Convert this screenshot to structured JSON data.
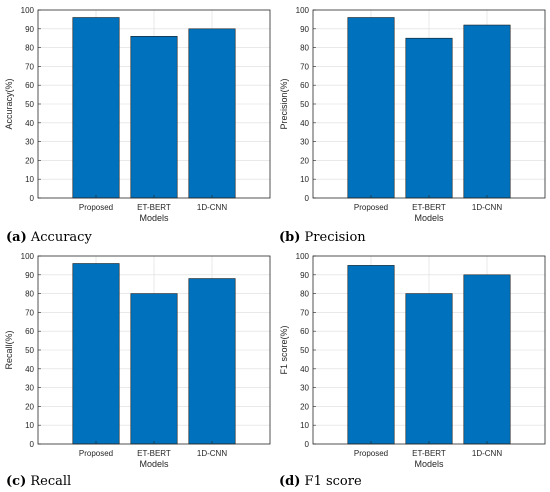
{
  "colors": {
    "bar": "#0072BD",
    "bar_edge": "#1a1a1a",
    "grid": "#dcdcdc",
    "axis": "#262626"
  },
  "chart_data": [
    {
      "type": "bar",
      "panel_letter": "(a)",
      "caption": "Accuracy",
      "categories": [
        "Proposed",
        "ET-BERT",
        "1D-CNN"
      ],
      "values": [
        96,
        86,
        90
      ],
      "xlabel": "Models",
      "ylabel": "Accuracy(%)",
      "ylim": [
        0,
        100
      ],
      "yticks": [
        0,
        10,
        20,
        30,
        40,
        50,
        60,
        70,
        80,
        90,
        100
      ],
      "grid": true
    },
    {
      "type": "bar",
      "panel_letter": "(b)",
      "caption": "Precision",
      "categories": [
        "Proposed",
        "ET-BERT",
        "1D-CNN"
      ],
      "values": [
        96,
        85,
        92
      ],
      "xlabel": "Models",
      "ylabel": "Precision(%)",
      "ylim": [
        0,
        100
      ],
      "yticks": [
        0,
        10,
        20,
        30,
        40,
        50,
        60,
        70,
        80,
        90,
        100
      ],
      "grid": true
    },
    {
      "type": "bar",
      "panel_letter": "(c)",
      "caption": "Recall",
      "categories": [
        "Proposed",
        "ET-BERT",
        "1D-CNN"
      ],
      "values": [
        96,
        80,
        88
      ],
      "xlabel": "Models",
      "ylabel": "Recall(%)",
      "ylim": [
        0,
        100
      ],
      "yticks": [
        0,
        10,
        20,
        30,
        40,
        50,
        60,
        70,
        80,
        90,
        100
      ],
      "grid": true
    },
    {
      "type": "bar",
      "panel_letter": "(d)",
      "caption": "F1 score",
      "categories": [
        "Proposed",
        "ET-BERT",
        "1D-CNN"
      ],
      "values": [
        95,
        80,
        90
      ],
      "xlabel": "Models",
      "ylabel": "F1 score(%)",
      "ylim": [
        0,
        100
      ],
      "yticks": [
        0,
        10,
        20,
        30,
        40,
        50,
        60,
        70,
        80,
        90,
        100
      ],
      "grid": true
    }
  ]
}
